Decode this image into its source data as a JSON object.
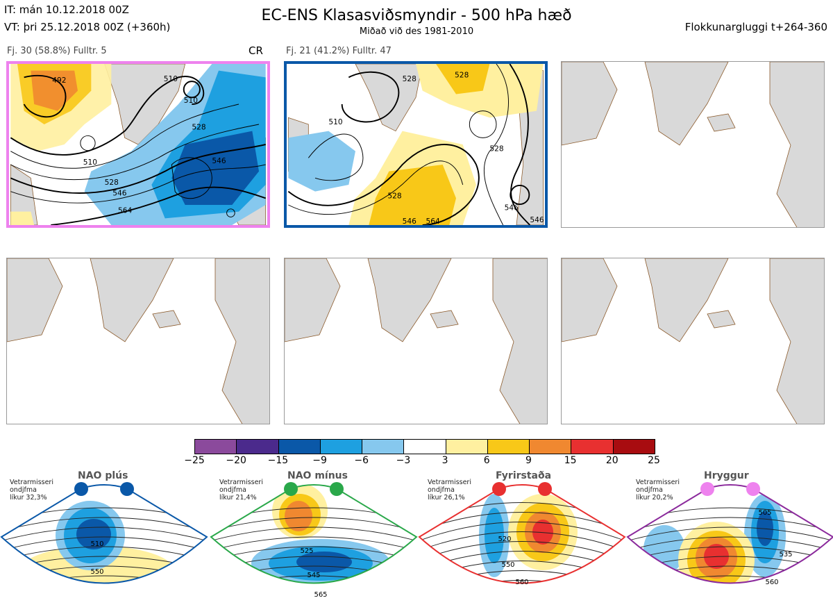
{
  "header": {
    "it_line": "IT: mán 10.12.2018 00Z",
    "vt_line": "VT: þri 25.12.2018 00Z  (+360h)",
    "title": "EC-ENS Klasasviðsmyndir - 500 hPa hæð",
    "subtitle": "Miðað við des 1981-2010",
    "window": "Flokkunargluggi t+264-360"
  },
  "panels": [
    {
      "label": "Fj. 30 (58.8%)   Fulltr. 5",
      "tag": "CR",
      "frame_color": "#ee82ee"
    },
    {
      "label": "Fj. 21 (41.2%)   Fulltr. 47",
      "tag": "",
      "frame_color": "#0a58a8"
    }
  ],
  "colors": {
    "land": "#d9d9d9",
    "coast": "#8b5a2b"
  },
  "chart_data": [
    {
      "type": "contour_map",
      "title": "Fj. 30 (58.8%)",
      "contour_labels": [
        "492",
        "510",
        "510",
        "528",
        "528",
        "546",
        "546",
        "564",
        "510"
      ]
    },
    {
      "type": "contour_map",
      "title": "Fj. 21 (41.2%)",
      "contour_labels": [
        "528",
        "528",
        "510",
        "528",
        "546",
        "564",
        "528",
        "546",
        "546"
      ]
    },
    {
      "type": "colorbar",
      "ticks": [
        "−25",
        "−20",
        "−15",
        "−9",
        "−6",
        "−3",
        "3",
        "6",
        "9",
        "15",
        "20",
        "25"
      ],
      "colors": [
        "#8b4a9c",
        "#4b2a8c",
        "#0a58a8",
        "#1ea0e0",
        "#86c8ee",
        "#ffffff",
        "#fff0a0",
        "#f8c818",
        "#f08830",
        "#e83030",
        "#a80c10"
      ]
    }
  ],
  "regimes": [
    {
      "name": "NAO plús",
      "meta": [
        "Vetrarmisseri",
        "ondjfma",
        "líkur 32,3%"
      ],
      "frame": "#0a58a8",
      "dot": "#0a58a8",
      "labels": [
        "510",
        "550"
      ]
    },
    {
      "name": "NAO mínus",
      "meta": [
        "Vetrarmisseri",
        "ondjfma",
        "líkur 21,4%"
      ],
      "frame": "#2aa84a",
      "dot": "#2aa84a",
      "labels": [
        "525",
        "545",
        "565"
      ]
    },
    {
      "name": "Fyrirstaða",
      "meta": [
        "Vetrarmisseri",
        "ondjfma",
        "líkur 26,1%"
      ],
      "frame": "#e83030",
      "dot": "#e83030",
      "labels": [
        "520",
        "550",
        "560"
      ]
    },
    {
      "name": "Hryggur",
      "meta": [
        "Vetrarmisseri",
        "ondjfma",
        "líkur 20,2%"
      ],
      "frame": "#8b2a9c",
      "dot": "#ee82ee",
      "labels": [
        "505",
        "535",
        "560"
      ]
    }
  ]
}
